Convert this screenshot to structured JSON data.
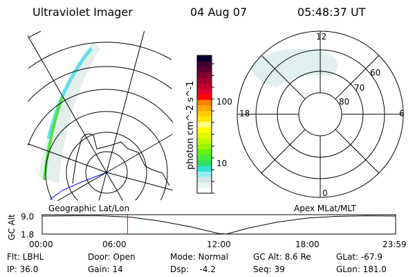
{
  "header": {
    "title": "Ultraviolet Imager",
    "date": "04 Aug 07",
    "time": "05:48:37 UT"
  },
  "chart_data": [
    {
      "type": "heatmap",
      "title": "Geographic Lat/Lon",
      "projection": "polar, south pole"
    },
    {
      "type": "heatmap",
      "title": "Apex MLat/MLT",
      "projection": "polar",
      "mlt_labels": [
        "12",
        "18",
        "6",
        "0"
      ],
      "mlat_labels": [
        "60",
        "70",
        "80"
      ]
    },
    {
      "type": "colorbar",
      "label": "photon cm^-2 s^-1",
      "scale": "log",
      "tick_labels": [
        "10",
        "100"
      ],
      "colors": [
        "#ffffff",
        "#e8f4ee",
        "#d4e4e2",
        "#96ecf4",
        "#2ee0d6",
        "#30e060",
        "#48e838",
        "#64f010",
        "#9cf400",
        "#c0f800",
        "#e0f800",
        "#ffff00",
        "#ffff80",
        "#ffe800",
        "#ffcc00",
        "#ffaa00",
        "#ff8000",
        "#ff0000",
        "#e00030",
        "#c00030",
        "#a00030",
        "#800030",
        "#600030",
        "#400030",
        "#000030"
      ]
    },
    {
      "type": "line",
      "ylabel": "GC Alt",
      "ytick_labels": [
        "9.0",
        "1.8"
      ],
      "xtick_labels": [
        "00:00",
        "06:00",
        "12:00",
        "18:00",
        "23:59"
      ],
      "current_time_marker": "05:48",
      "x_hours": [
        0,
        2,
        4,
        6,
        8,
        10,
        12,
        12.5,
        14,
        16,
        18,
        20,
        22,
        24
      ],
      "y": [
        9.0,
        9.1,
        9.1,
        8.6,
        7.0,
        4.8,
        2.0,
        1.8,
        4.2,
        6.6,
        8.2,
        8.9,
        9.1,
        9.0
      ],
      "ylim": [
        1.8,
        9.0
      ]
    }
  ],
  "footer": {
    "flt": "Flt: LBHL",
    "ip": "IP: 36.0",
    "door": "Door: Open",
    "gain": "Gain: 14",
    "mode": "Mode: Normal",
    "dsp": "Dsp:    -4.2",
    "gcalt": "GC Alt: 8.6 Re",
    "seq": "Seq: 39",
    "glat": "GLat: -67.9",
    "glon": "GLon: 181.0"
  }
}
